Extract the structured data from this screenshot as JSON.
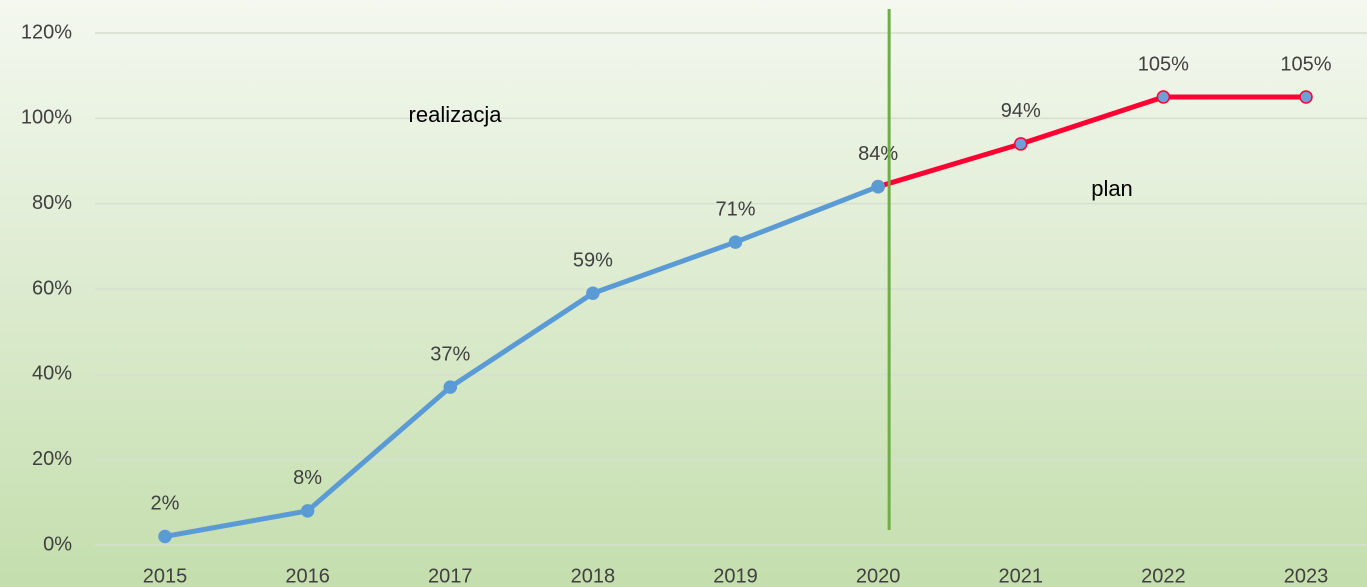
{
  "chart_data": {
    "type": "line",
    "categories": [
      "2015",
      "2016",
      "2017",
      "2018",
      "2019",
      "2020",
      "2021",
      "2022",
      "2023"
    ],
    "series": [
      {
        "name": "plan",
        "color": "#ff0033",
        "marker_color": "#6f9fd8",
        "values": [
          null,
          null,
          null,
          null,
          null,
          84,
          94,
          105,
          105
        ],
        "value_labels": [
          null,
          null,
          null,
          null,
          null,
          null,
          "94%",
          "105%",
          "105%"
        ]
      },
      {
        "name": "realizacja",
        "color": "#5b9bd5",
        "marker_color": "#5b9bd5",
        "values": [
          2,
          8,
          37,
          59,
          71,
          84,
          null,
          null,
          null
        ],
        "value_labels": [
          "2%",
          "8%",
          "37%",
          "59%",
          "71%",
          "84%",
          null,
          null,
          null
        ]
      }
    ],
    "ylim": [
      0,
      120
    ],
    "yticks": [
      {
        "value": 0,
        "label": "0%"
      },
      {
        "value": 20,
        "label": "20%"
      },
      {
        "value": 40,
        "label": "40%"
      },
      {
        "value": 60,
        "label": "60%"
      },
      {
        "value": 80,
        "label": "80%"
      },
      {
        "value": 100,
        "label": "100%"
      },
      {
        "value": 120,
        "label": "120%"
      }
    ],
    "grid": true,
    "divider": {
      "after": "2020",
      "color": "#70ad47"
    }
  }
}
